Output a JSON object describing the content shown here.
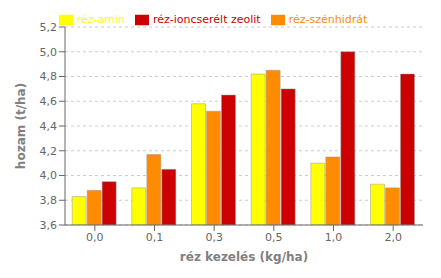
{
  "chart_data": {
    "type": "bar",
    "categories": [
      "0,0",
      "0,1",
      "0,3",
      "0,5",
      "1,0",
      "2,0"
    ],
    "series": [
      {
        "name": "réz-amin",
        "color": "#FFFF00",
        "values": [
          3.83,
          3.9,
          4.58,
          4.82,
          4.1,
          3.93
        ]
      },
      {
        "name": "réz-szénhidrát",
        "color": "#FF8C00",
        "values": [
          3.88,
          4.17,
          4.52,
          4.85,
          4.15,
          3.9
        ]
      },
      {
        "name": "réz-ioncserélt zeolit",
        "color": "#CC0000",
        "values": [
          3.95,
          4.05,
          4.65,
          4.7,
          5.0,
          4.82
        ]
      }
    ],
    "xlabel": "réz kezelés (kg/ha)",
    "ylabel": "hozam (t/ha)",
    "ylim": [
      3.6,
      5.2
    ],
    "yticks": [
      {
        "value": 3.6,
        "label": "3,6"
      },
      {
        "value": 3.8,
        "label": "3,8"
      },
      {
        "value": 4.0,
        "label": "4,0"
      },
      {
        "value": 4.2,
        "label": "4,2"
      },
      {
        "value": 4.4,
        "label": "4,4"
      },
      {
        "value": 4.6,
        "label": "4,6"
      },
      {
        "value": 4.8,
        "label": "4,8"
      },
      {
        "value": 5.0,
        "label": "5,0"
      },
      {
        "value": 5.2,
        "label": "5,2"
      }
    ],
    "grid": true,
    "legend": "top"
  }
}
